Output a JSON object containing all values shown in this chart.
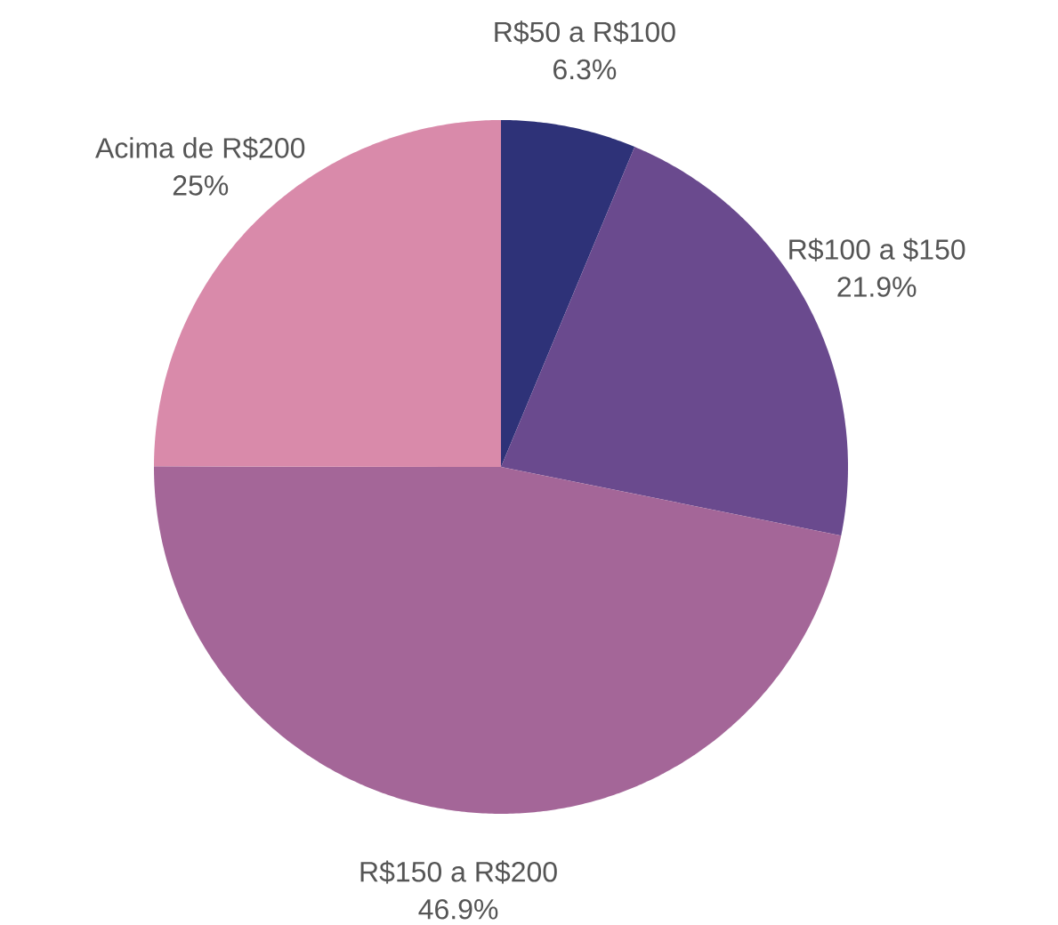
{
  "chart_data": {
    "type": "pie",
    "categories": [
      "R$50 a R$100",
      "R$100 a $150",
      "R$150 a R$200",
      "Acima de R$200"
    ],
    "values": [
      6.3,
      21.9,
      46.9,
      25
    ],
    "value_labels": [
      "6.3%",
      "21.9%",
      "46.9%",
      "25%"
    ],
    "colors": [
      "#2e3278",
      "#6a4a8e",
      "#a46698",
      "#d98aaa"
    ]
  }
}
